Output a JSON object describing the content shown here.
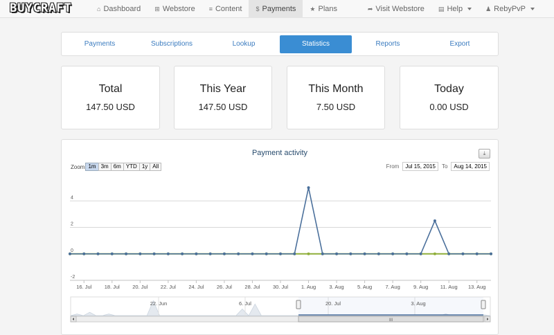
{
  "brand": {
    "logo_text": "BUYCRAFT"
  },
  "nav": {
    "left": [
      {
        "id": "dashboard",
        "icon": "home-icon",
        "glyph": "⌂",
        "label": "Dashboard"
      },
      {
        "id": "webstore",
        "icon": "cart-icon",
        "glyph": "⊞",
        "label": "Webstore"
      },
      {
        "id": "content",
        "icon": "list-icon",
        "glyph": "≡",
        "label": "Content"
      },
      {
        "id": "payments",
        "icon": "dollar-icon",
        "glyph": "$",
        "label": "Payments",
        "active": true
      },
      {
        "id": "plans",
        "icon": "star-icon",
        "glyph": "★",
        "label": "Plans"
      }
    ],
    "right": [
      {
        "id": "visit-webstore",
        "icon": "share-icon",
        "glyph": "➦",
        "label": "Visit Webstore"
      },
      {
        "id": "help",
        "icon": "book-icon",
        "glyph": "▤",
        "label": "Help",
        "dropdown": true
      },
      {
        "id": "user",
        "icon": "user-icon",
        "glyph": "♟",
        "label": "RebyPvP",
        "dropdown": true
      }
    ]
  },
  "tabs": [
    {
      "id": "payments",
      "label": "Payments"
    },
    {
      "id": "subscriptions",
      "label": "Subscriptions"
    },
    {
      "id": "lookup",
      "label": "Lookup"
    },
    {
      "id": "statistics",
      "label": "Statistics",
      "active": true
    },
    {
      "id": "reports",
      "label": "Reports"
    },
    {
      "id": "export",
      "label": "Export"
    }
  ],
  "stats": [
    {
      "label": "Total",
      "value": "147.50 USD"
    },
    {
      "label": "This Year",
      "value": "147.50 USD"
    },
    {
      "label": "This Month",
      "value": "7.50 USD"
    },
    {
      "label": "Today",
      "value": "0.00 USD"
    }
  ],
  "chart_panel": {
    "zoom_label": "Zoom",
    "zoom_buttons": [
      {
        "label": "1m",
        "active": true
      },
      {
        "label": "3m"
      },
      {
        "label": "6m"
      },
      {
        "label": "YTD"
      },
      {
        "label": "1y"
      },
      {
        "label": "All"
      }
    ],
    "from_label": "From",
    "from_value": "Jul 15, 2015",
    "to_label": "To",
    "to_value": "Aug 14, 2015",
    "export_glyph": "⤓"
  },
  "chart_data": {
    "type": "line",
    "title": "Payment activity",
    "x": [
      "Jul 15",
      "Jul 16",
      "Jul 17",
      "Jul 18",
      "Jul 19",
      "Jul 20",
      "Jul 21",
      "Jul 22",
      "Jul 23",
      "Jul 24",
      "Jul 25",
      "Jul 26",
      "Jul 27",
      "Jul 28",
      "Jul 29",
      "Jul 30",
      "Jul 31",
      "Aug 1",
      "Aug 2",
      "Aug 3",
      "Aug 4",
      "Aug 5",
      "Aug 6",
      "Aug 7",
      "Aug 8",
      "Aug 9",
      "Aug 10",
      "Aug 11",
      "Aug 12",
      "Aug 13",
      "Aug 14"
    ],
    "series": [
      {
        "color": "#4a6f9b",
        "values": [
          0,
          0,
          0,
          0,
          0,
          0,
          0,
          0,
          0,
          0,
          0,
          0,
          0,
          0,
          0,
          0,
          0,
          5,
          0,
          0,
          0,
          0,
          0,
          0,
          0,
          0,
          2.5,
          0,
          0,
          0,
          0
        ]
      },
      {
        "color": "#8fae3a",
        "values": [
          0,
          0,
          0,
          0,
          0,
          0,
          0,
          0,
          0,
          0,
          0,
          0,
          0,
          0,
          0,
          0,
          0,
          0,
          0,
          0,
          0,
          0,
          0,
          0,
          0,
          0,
          0,
          0,
          0,
          0,
          0
        ]
      }
    ],
    "ylim": [
      -2,
      6
    ],
    "y_ticks": [
      -2,
      0,
      2,
      4
    ],
    "x_tick_labels": [
      {
        "at": "Jul 16",
        "label": "16. Jul"
      },
      {
        "at": "Jul 18",
        "label": "18. Jul"
      },
      {
        "at": "Jul 20",
        "label": "20. Jul"
      },
      {
        "at": "Jul 22",
        "label": "22. Jul"
      },
      {
        "at": "Jul 24",
        "label": "24. Jul"
      },
      {
        "at": "Jul 26",
        "label": "26. Jul"
      },
      {
        "at": "Jul 28",
        "label": "28. Jul"
      },
      {
        "at": "Jul 30",
        "label": "30. Jul"
      },
      {
        "at": "Aug 1",
        "label": "1. Aug"
      },
      {
        "at": "Aug 3",
        "label": "3. Aug"
      },
      {
        "at": "Aug 5",
        "label": "5. Aug"
      },
      {
        "at": "Aug 7",
        "label": "7. Aug"
      },
      {
        "at": "Aug 9",
        "label": "9. Aug"
      },
      {
        "at": "Aug 11",
        "label": "11. Aug"
      },
      {
        "at": "Aug 13",
        "label": "13. Aug"
      }
    ],
    "navigator": {
      "labels": [
        "22. Jun",
        "6. Jul",
        "20. Jul",
        "3. Aug"
      ],
      "scroll_grip": "III"
    },
    "grid": true,
    "legend": "none"
  }
}
